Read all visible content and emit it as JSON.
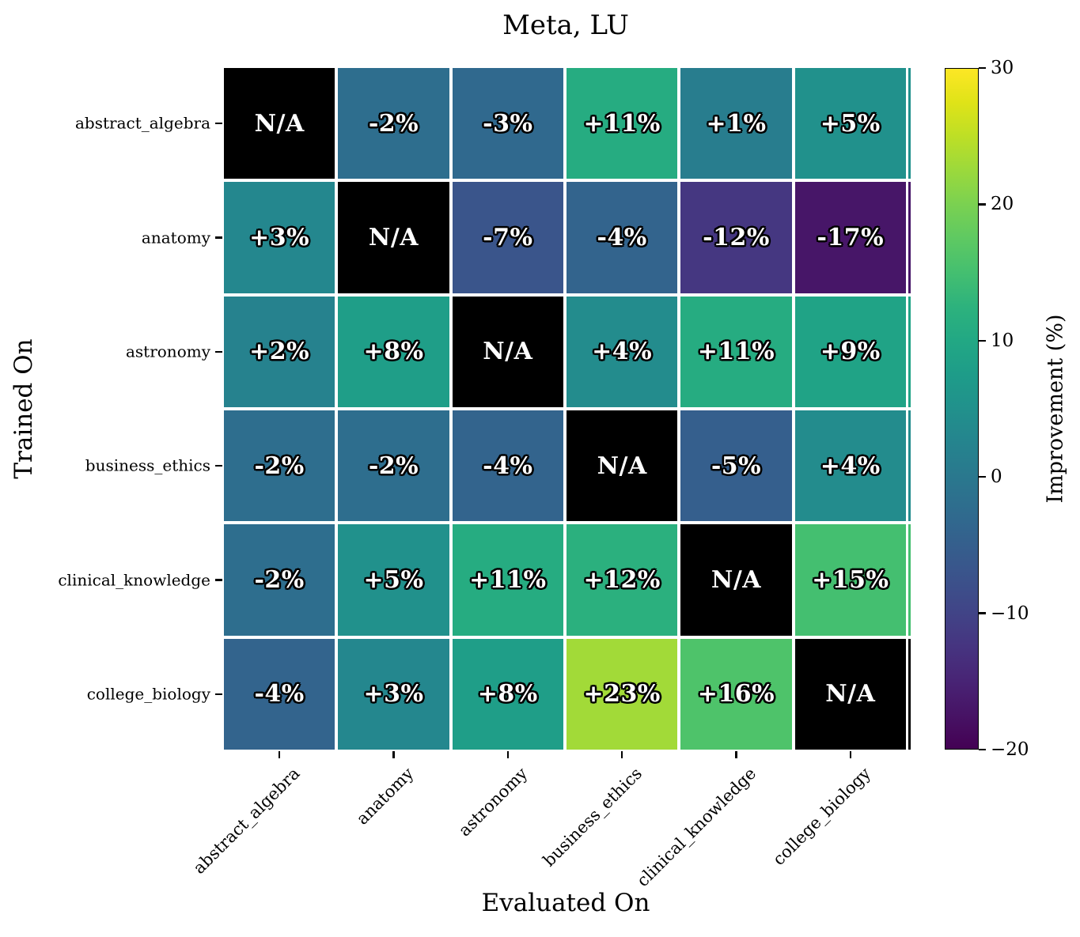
{
  "chart_data": {
    "type": "heatmap",
    "title": "Meta, LU",
    "xlabel": "Evaluated On",
    "ylabel": "Trained On",
    "x_categories": [
      "abstract_algebra",
      "anatomy",
      "astronomy",
      "business_ethics",
      "clinical_knowledge",
      "college_biology"
    ],
    "y_categories": [
      "abstract_algebra",
      "anatomy",
      "astronomy",
      "business_ethics",
      "clinical_knowledge",
      "college_biology"
    ],
    "values": [
      [
        null,
        -2,
        -3,
        11,
        1,
        5
      ],
      [
        3,
        null,
        -7,
        -4,
        -12,
        -17
      ],
      [
        2,
        8,
        null,
        4,
        11,
        9
      ],
      [
        -2,
        -2,
        -4,
        null,
        -5,
        4
      ],
      [
        -2,
        5,
        11,
        12,
        null,
        15
      ],
      [
        -4,
        3,
        8,
        23,
        16,
        null
      ]
    ],
    "cell_labels": [
      [
        "N/A",
        "-2%",
        "-3%",
        "+11%",
        "+1%",
        "+5%"
      ],
      [
        "+3%",
        "N/A",
        "-7%",
        "-4%",
        "-12%",
        "-17%"
      ],
      [
        "+2%",
        "+8%",
        "N/A",
        "+4%",
        "+11%",
        "+9%"
      ],
      [
        "-2%",
        "-2%",
        "-4%",
        "N/A",
        "-5%",
        "+4%"
      ],
      [
        "-2%",
        "+5%",
        "+11%",
        "+12%",
        "N/A",
        "+15%"
      ],
      [
        "-4%",
        "+3%",
        "+8%",
        "+23%",
        "+16%",
        "N/A"
      ]
    ],
    "na_label": "N/A",
    "na_color": "#000000",
    "cell_text_color": "#ffffff",
    "cell_text_outline_color": "#000000",
    "grid_line_color": "#ffffff",
    "vmin": -20,
    "vmax": 30,
    "colormap": "viridis",
    "colormap_stops": [
      "#440154",
      "#471365",
      "#482475",
      "#463480",
      "#414487",
      "#3b528b",
      "#355f8d",
      "#2f6c8e",
      "#2a788e",
      "#25848e",
      "#21918c",
      "#1e9c89",
      "#22a884",
      "#2db27d",
      "#44bf70",
      "#5ec962",
      "#7ad151",
      "#9bd93c",
      "#bddf26",
      "#dfe318",
      "#fde725"
    ],
    "grid": false,
    "legend_position": "none",
    "colorbar": {
      "label": "Improvement (%)",
      "ticks": [
        30,
        20,
        10,
        0,
        -10,
        -20
      ],
      "tick_labels": [
        "30",
        "20",
        "10",
        "0",
        "−10",
        "−20"
      ]
    }
  }
}
